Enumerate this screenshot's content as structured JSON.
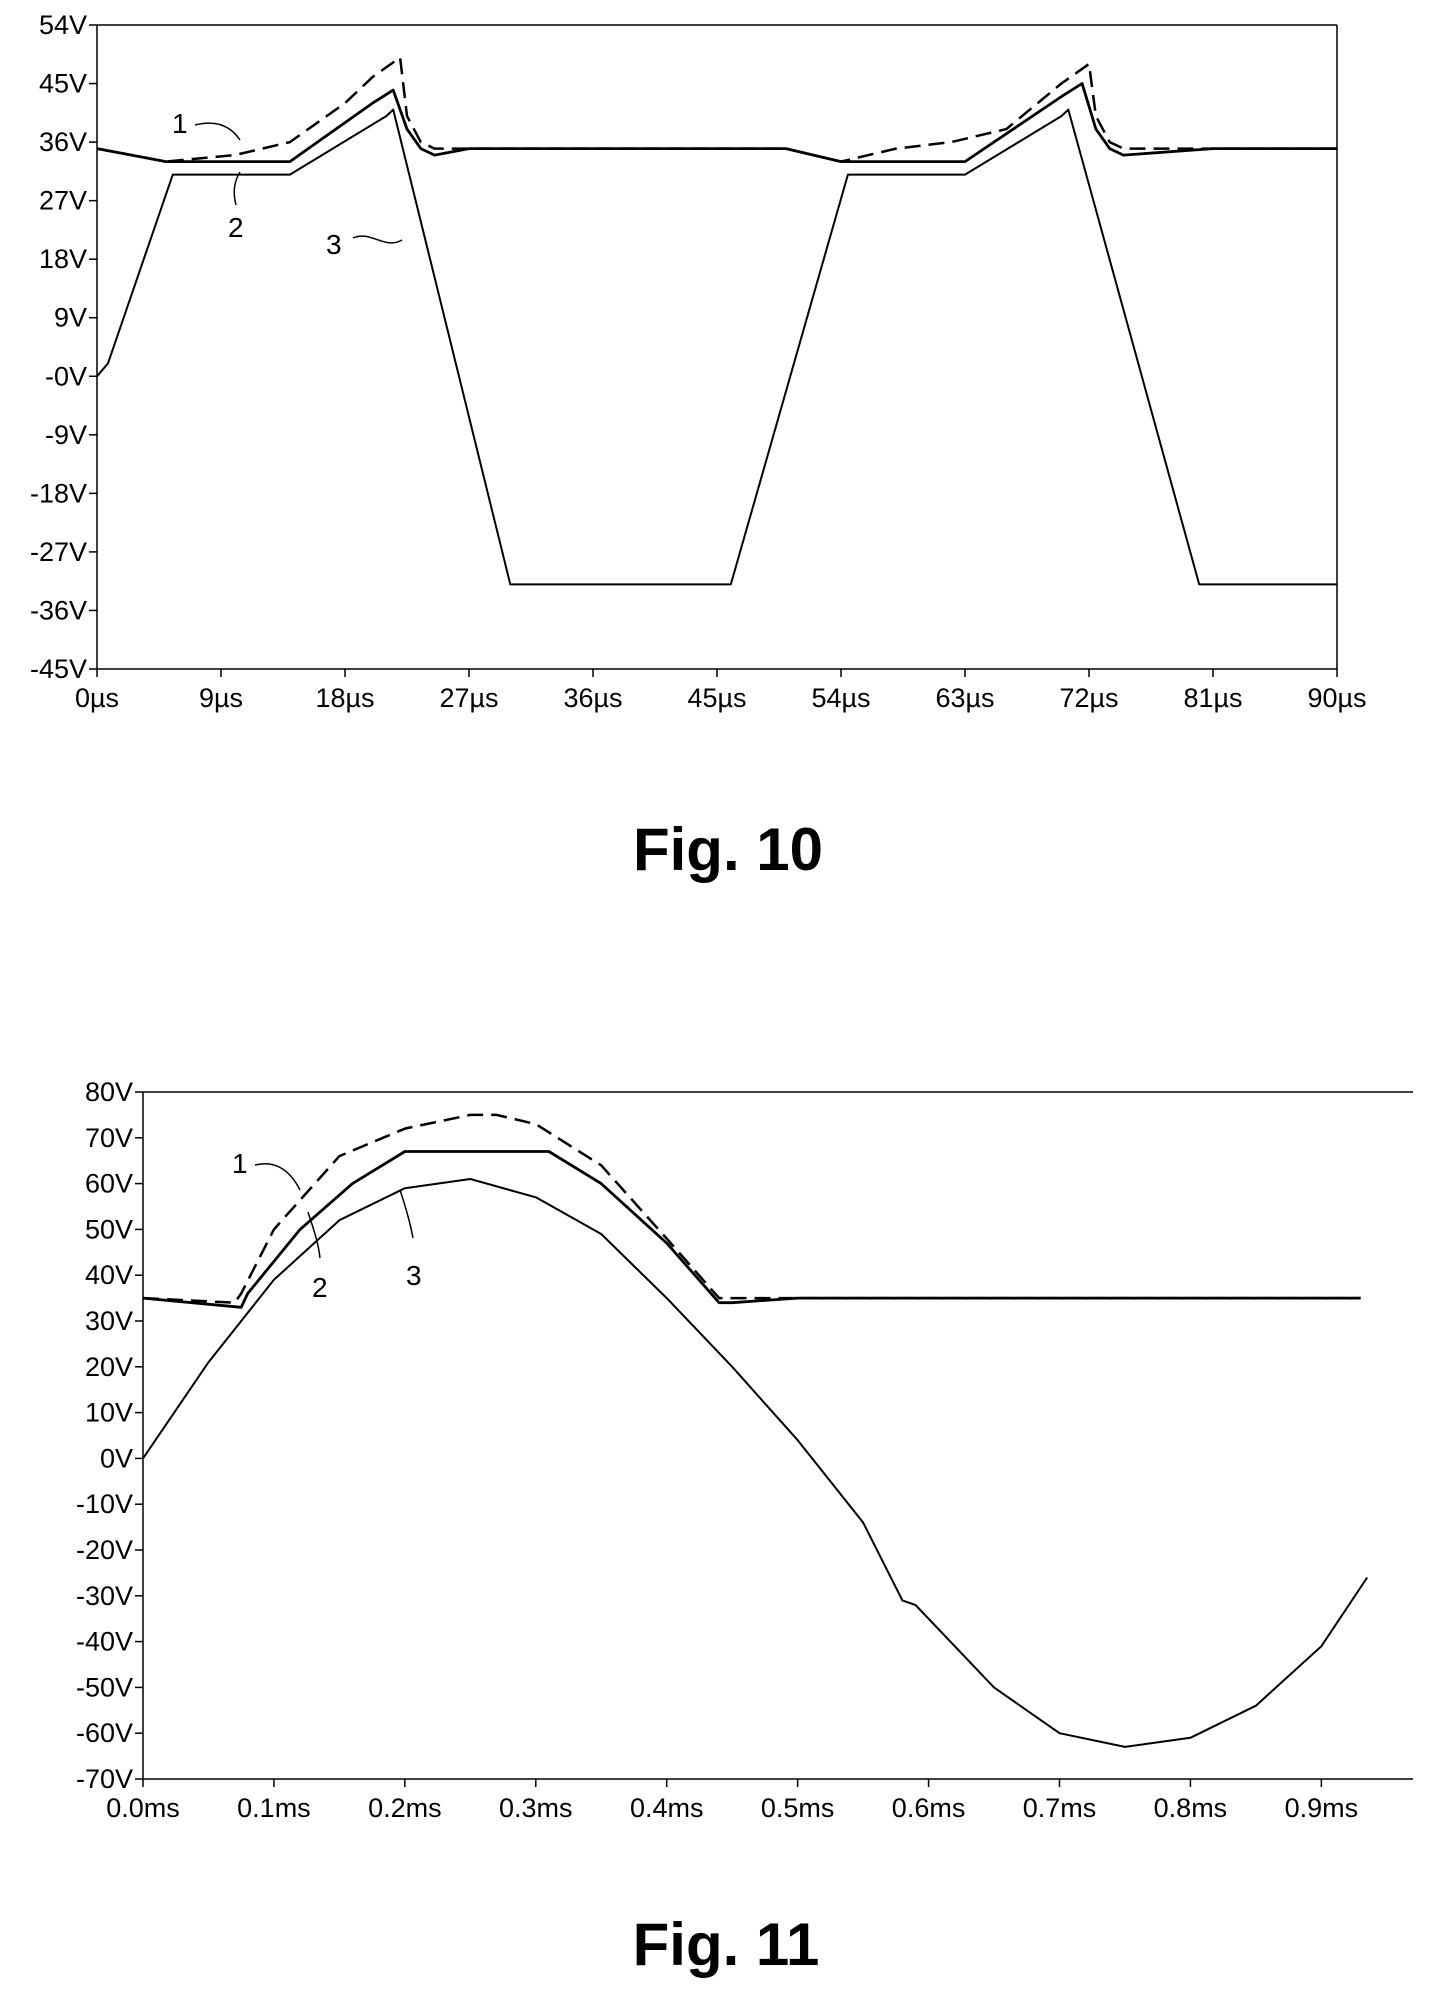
{
  "chart_data": [
    {
      "type": "line",
      "caption": "Fig. 10",
      "x_ticks": [
        "0µs",
        "9µs",
        "18µs",
        "27µs",
        "36µs",
        "45µs",
        "54µs",
        "63µs",
        "72µs",
        "81µs",
        "90µs"
      ],
      "y_ticks": [
        "54V",
        "45V",
        "36V",
        "27V",
        "18V",
        "9V",
        "-0V",
        "-9V",
        "-18V",
        "-27V",
        "-36V",
        "-45V"
      ],
      "xlim": [
        0,
        90
      ],
      "ylim": [
        -45,
        54
      ],
      "x_unit": "µs",
      "y_unit": "V",
      "series": [
        {
          "label": "1",
          "dash": true,
          "x": [
            0,
            5,
            10,
            14,
            18,
            20,
            22,
            22.5,
            23.5,
            24.5,
            27,
            50,
            54,
            58,
            62,
            66,
            70,
            72,
            72.5,
            73.5,
            74.5,
            81,
            90
          ],
          "y": [
            35,
            33,
            34,
            36,
            42,
            46,
            49,
            40,
            36,
            35,
            35,
            35,
            33,
            35,
            36,
            38,
            45,
            48,
            40,
            36,
            35,
            35,
            35
          ]
        },
        {
          "label": "2",
          "dash": false,
          "x": [
            0,
            5,
            14,
            20,
            21.5,
            22.5,
            23.5,
            24.5,
            27,
            50,
            54,
            63,
            70,
            71.5,
            72.5,
            73.5,
            74.5,
            81,
            90
          ],
          "y": [
            35,
            33,
            33,
            42,
            44,
            38,
            35,
            34,
            35,
            35,
            33,
            33,
            43,
            45,
            38,
            35,
            34,
            35,
            35
          ]
        },
        {
          "label": "3",
          "dash": false,
          "x": [
            0,
            0.8,
            5.5,
            14,
            21,
            21.5,
            30,
            46,
            54.5,
            63,
            70,
            70.5,
            80,
            90
          ],
          "y": [
            0,
            2,
            31,
            31,
            40,
            41,
            -32,
            -32,
            31,
            31,
            40,
            41,
            -32,
            -32
          ]
        }
      ]
    },
    {
      "type": "line",
      "caption": "Fig. 11",
      "x_ticks": [
        "0.0ms",
        "0.1ms",
        "0.2ms",
        "0.3ms",
        "0.4ms",
        "0.5ms",
        "0.6ms",
        "0.7ms",
        "0.8ms",
        "0.9ms"
      ],
      "y_ticks": [
        "80V",
        "70V",
        "60V",
        "50V",
        "40V",
        "30V",
        "20V",
        "10V",
        "0V",
        "-10V",
        "-20V",
        "-30V",
        "-40V",
        "-50V",
        "-60V",
        "-70V"
      ],
      "xlim": [
        0,
        0.97
      ],
      "ylim": [
        -70,
        80
      ],
      "x_unit": "ms",
      "y_unit": "V",
      "series": [
        {
          "label": "1",
          "dash": true,
          "x": [
            0,
            0.07,
            0.075,
            0.1,
            0.15,
            0.2,
            0.25,
            0.27,
            0.3,
            0.35,
            0.4,
            0.44,
            0.45,
            0.5,
            0.93
          ],
          "y": [
            35,
            34,
            36,
            50,
            66,
            72,
            75,
            75,
            73,
            64,
            48,
            35,
            35,
            35,
            35
          ]
        },
        {
          "label": "2",
          "dash": false,
          "x": [
            0,
            0.075,
            0.08,
            0.12,
            0.16,
            0.2,
            0.31,
            0.35,
            0.4,
            0.44,
            0.45,
            0.5,
            0.93
          ],
          "y": [
            35,
            33,
            36,
            50,
            60,
            67,
            67,
            60,
            47,
            34,
            34,
            35,
            35
          ]
        },
        {
          "label": "3",
          "dash": false,
          "x": [
            0,
            0.05,
            0.1,
            0.15,
            0.2,
            0.25,
            0.3,
            0.35,
            0.4,
            0.45,
            0.5,
            0.55,
            0.58,
            0.59,
            0.65,
            0.7,
            0.75,
            0.8,
            0.85,
            0.9,
            0.935
          ],
          "y": [
            0,
            21,
            39,
            52,
            59,
            61,
            57,
            49,
            35,
            20,
            4,
            -14,
            -31,
            -32,
            -50,
            -60,
            -63,
            -61,
            -54,
            -41,
            -26
          ]
        }
      ]
    }
  ]
}
